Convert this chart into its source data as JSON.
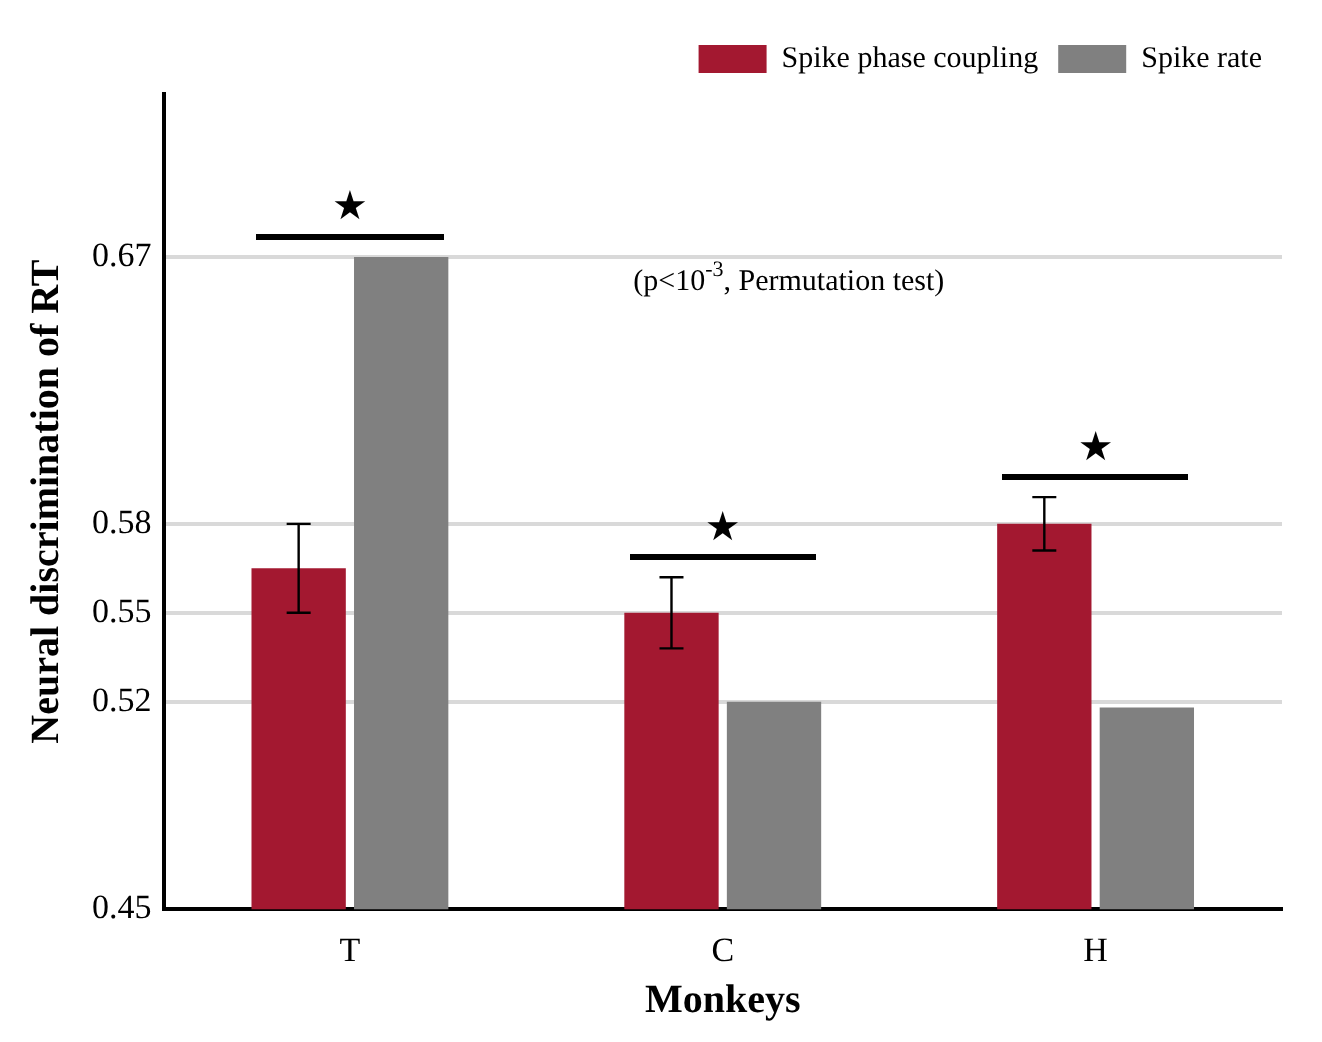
{
  "chart_data": {
    "type": "bar",
    "xlabel": "Monkeys",
    "ylabel": "Neural discrimination of RT",
    "categories": [
      "T",
      "C",
      "H"
    ],
    "series": [
      {
        "name": "Spike phase coupling",
        "color": "#a31830",
        "values": [
          0.565,
          0.55,
          0.58
        ],
        "errors": [
          0.015,
          0.012,
          0.009
        ]
      },
      {
        "name": "Spike rate",
        "color": "#808080",
        "values": [
          0.67,
          0.52,
          0.518
        ]
      }
    ],
    "ylim": [
      0.45,
      0.725
    ],
    "yticks": [
      0.45,
      0.52,
      0.55,
      0.58,
      0.67
    ],
    "grid": "y",
    "legend": "top right",
    "annotations": [
      "(p<10$^{-3}$, Permutation test)",
      "★",
      "★",
      "★"
    ]
  }
}
